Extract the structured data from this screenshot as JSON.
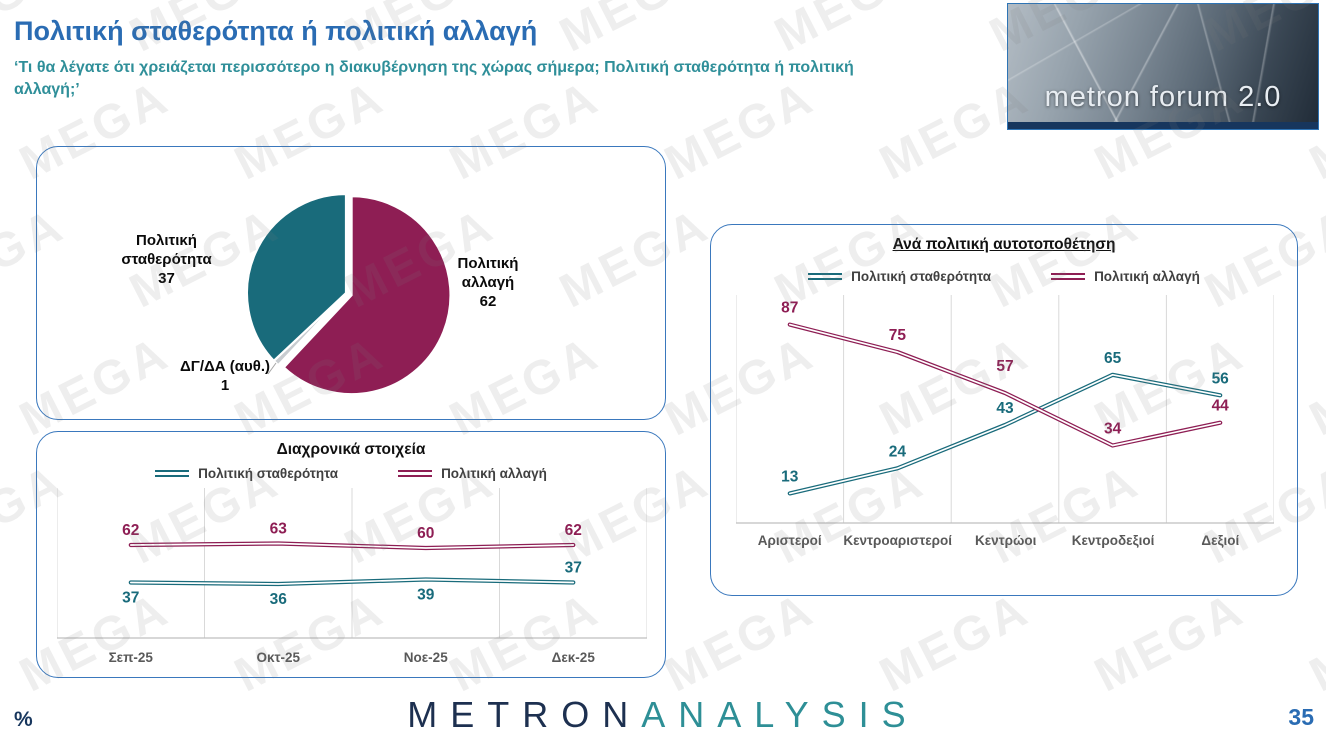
{
  "page": {
    "title": "Πολιτική σταθερότητα ή πολιτική αλλαγή",
    "subtitle": "‘Τι θα λέγατε ότι χρειάζεται περισσότερο η διακυβέρνηση της χώρας σήμερα; Πολιτική σταθερότητα ή πολιτική αλλαγή;’",
    "watermark_text": "MEGA",
    "percent_label": "%",
    "page_number": "35"
  },
  "logo": {
    "text": "metron forum 2.0"
  },
  "footer_logo": {
    "metron": "METRON",
    "analysis": "ANALYSIS"
  },
  "colors": {
    "stability_teal": "#196b7b",
    "change_maroon": "#8e1e54",
    "dk_gray": "#c8ccd0",
    "title_blue": "#2a6cb3",
    "subtitle_teal": "#2f8f99",
    "axis_text_gray": "#595959",
    "panel_border_blue": "#3a78bd"
  },
  "chart_data": [
    {
      "type": "pie",
      "title": "",
      "slices": [
        {
          "label": "Πολιτική αλλαγή",
          "value": 62,
          "color": "#8e1e54"
        },
        {
          "label": "ΔΓ/ΔΑ (αυθ.)",
          "value": 1,
          "color": "#c8ccd0"
        },
        {
          "label": "Πολιτική σταθερότητα",
          "value": 37,
          "color": "#196b7b"
        }
      ]
    },
    {
      "type": "line",
      "title": "Διαχρονικά στοιχεία",
      "categories": [
        "Σεπ-25",
        "Οκτ-25",
        "Νοε-25",
        "Δεκ-25"
      ],
      "ylim": [
        0,
        100
      ],
      "legend_position": "top",
      "series": [
        {
          "name": "Πολιτική σταθερότητα",
          "color": "#196b7b",
          "values": [
            37,
            36,
            39,
            37
          ]
        },
        {
          "name": "Πολιτική αλλαγή",
          "color": "#8e1e54",
          "values": [
            62,
            63,
            60,
            62
          ]
        }
      ]
    },
    {
      "type": "line",
      "title": "Ανά πολιτική αυτοτοποθέτηση",
      "categories": [
        "Αριστεροί",
        "Κεντροαριστεροί",
        "Κεντρώοι",
        "Κεντροδεξιοί",
        "Δεξιοί"
      ],
      "ylim": [
        0,
        100
      ],
      "legend_position": "top",
      "series": [
        {
          "name": "Πολιτική σταθερότητα",
          "color": "#196b7b",
          "values": [
            13,
            24,
            43,
            65,
            56
          ]
        },
        {
          "name": "Πολιτική αλλαγή",
          "color": "#8e1e54",
          "values": [
            87,
            75,
            57,
            34,
            44
          ]
        }
      ]
    }
  ]
}
